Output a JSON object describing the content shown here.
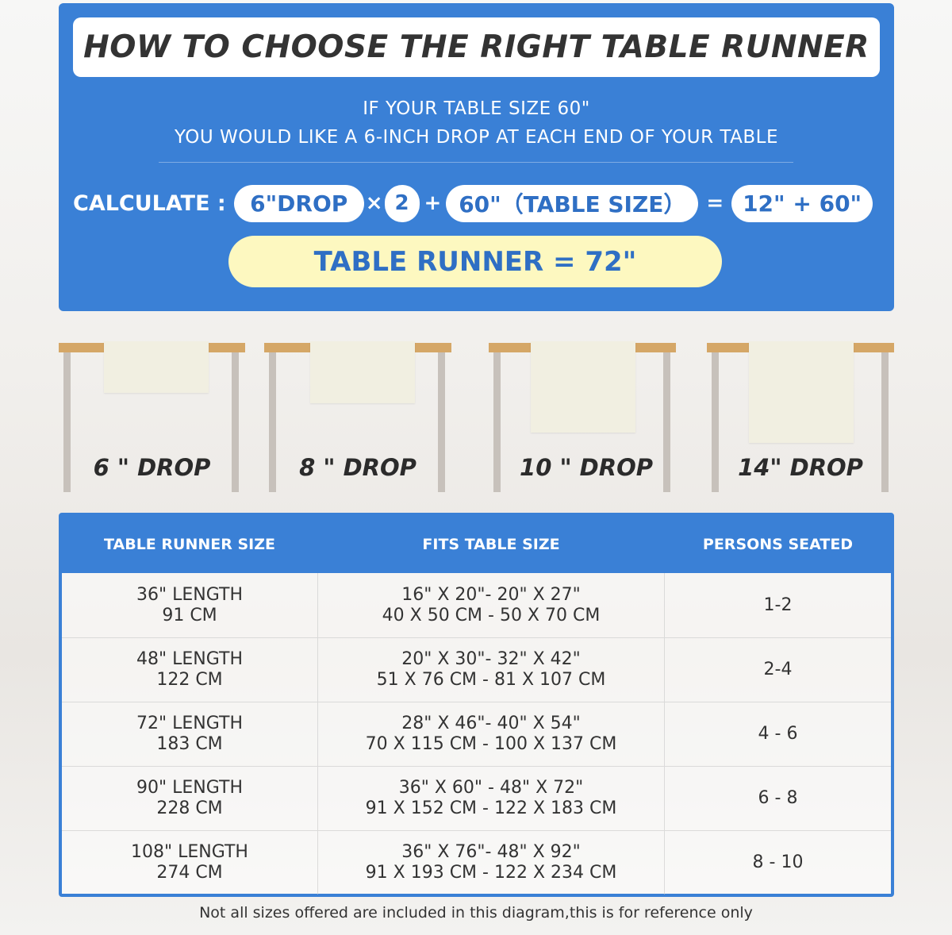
{
  "title": "HOW TO CHOOSE THE RIGHT TABLE RUNNER",
  "subtitle_lines": [
    "IF YOUR TABLE SIZE 60\"",
    "YOU WOULD LIKE A 6-INCH DROP AT EACH END OF YOUR TABLE"
  ],
  "calculation": {
    "label": "CALCULATE :",
    "drop": "6\"DROP",
    "times": "×",
    "multiplier": "2",
    "plus": "+",
    "table_size": "60\"（TABLE SIZE）",
    "equals": "=",
    "sum": "12\" + 60\"",
    "result": "TABLE RUNNER = 72\""
  },
  "drops": [
    {
      "label": "6 \" DROP"
    },
    {
      "label": "8 \" DROP"
    },
    {
      "label": "10 \" DROP"
    },
    {
      "label": "14\" DROP"
    }
  ],
  "table": {
    "headers": [
      "TABLE RUNNER SIZE",
      "FITS TABLE SIZE",
      "PERSONS SEATED"
    ],
    "rows": [
      {
        "length": "36\" LENGTH",
        "cm": "91 CM",
        "fits_in": "16\" X 20\"- 20\" X 27\"",
        "fits_cm": "40 X 50 CM - 50 X 70 CM",
        "persons": "1-2"
      },
      {
        "length": "48\" LENGTH",
        "cm": "122 CM",
        "fits_in": "20\" X 30\"- 32\" X 42\"",
        "fits_cm": "51 X 76 CM - 81 X 107 CM",
        "persons": "2-4"
      },
      {
        "length": "72\" LENGTH",
        "cm": "183 CM",
        "fits_in": "28\" X 46\"- 40\" X 54\"",
        "fits_cm": "70 X 115 CM - 100 X 137 CM",
        "persons": "4 - 6"
      },
      {
        "length": "90\" LENGTH",
        "cm": "228 CM",
        "fits_in": "36\" X 60\" - 48\" X 72\"",
        "fits_cm": "91 X 152 CM - 122 X 183 CM",
        "persons": "6 - 8"
      },
      {
        "length": "108\" LENGTH",
        "cm": "274 CM",
        "fits_in": "36\" X 76\"- 48\" X 92\"",
        "fits_cm": "91 X 193 CM - 122 X 234 CM",
        "persons": "8 - 10"
      }
    ]
  },
  "footer": "Not all sizes offered are included in this diagram,this is for reference only",
  "colors": {
    "panel_blue": "#3a80d6",
    "result_yellow": "#fdf8c0",
    "tabletop": "#d5a767",
    "runner": "#f1efe1"
  }
}
